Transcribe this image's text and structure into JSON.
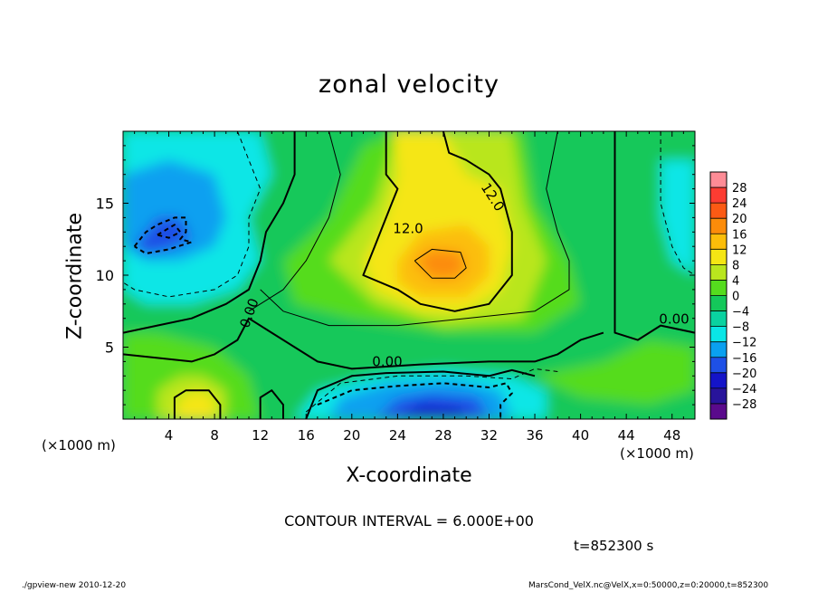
{
  "chart_data": {
    "type": "heatmap",
    "title": "zonal velocity",
    "xlabel": "X-coordinate",
    "ylabel": "Z-coordinate",
    "x_unit_label": "(×1000 m)",
    "xlim": [
      0,
      50
    ],
    "ylim": [
      0,
      20
    ],
    "x_ticks": [
      4,
      8,
      12,
      16,
      20,
      24,
      28,
      32,
      36,
      40,
      44,
      48
    ],
    "y_ticks": [
      5,
      10,
      15
    ],
    "colorbar_ticks": [
      28,
      24,
      20,
      16,
      12,
      8,
      4,
      0,
      -4,
      -8,
      -12,
      -16,
      -20,
      -24,
      -28
    ],
    "colorbar_colors": [
      "#fe8c96",
      "#fc3c32",
      "#fc5a14",
      "#fc8c0a",
      "#fcbe0a",
      "#f5e614",
      "#b9e61e",
      "#55dc1e",
      "#14c85a",
      "#0ad2a0",
      "#0ae6e6",
      "#0aa0f0",
      "#1e50e6",
      "#1414c8",
      "#28149b",
      "#5a0a8c"
    ],
    "contour_labels": [
      "12.0",
      "12.0",
      "0.00",
      "0.00",
      "0.00"
    ],
    "contour_interval_text": "CONTOUR INTERVAL = 6.000E+00",
    "time_text": "t=852300 s",
    "footer_left": "./gpview-new  2010-12-20",
    "footer_right": "MarsCond_VelX.nc@VelX,x=0:50000,z=0:20000,t=852300",
    "field_regions": [
      {
        "level": 0,
        "points": [
          [
            0,
            0
          ],
          [
            50,
            0
          ],
          [
            50,
            20
          ],
          [
            0,
            20
          ]
        ]
      },
      {
        "level": -8,
        "points": [
          [
            0,
            20
          ],
          [
            12,
            20
          ],
          [
            13,
            17
          ],
          [
            11,
            14
          ],
          [
            12,
            11
          ],
          [
            10,
            9
          ],
          [
            6,
            8
          ],
          [
            2,
            8
          ],
          [
            0,
            9
          ]
        ]
      },
      {
        "level": -12,
        "points": [
          [
            0,
            17
          ],
          [
            4,
            18
          ],
          [
            8,
            17
          ],
          [
            9,
            14
          ],
          [
            8,
            12
          ],
          [
            5,
            11
          ],
          [
            2,
            11
          ],
          [
            0,
            12
          ]
        ]
      },
      {
        "level": -16,
        "points": [
          [
            1,
            12
          ],
          [
            3,
            14
          ],
          [
            5,
            14
          ],
          [
            6,
            12.5
          ],
          [
            4,
            11.8
          ],
          [
            2,
            11.5
          ]
        ]
      },
      {
        "level": -8,
        "points": [
          [
            47,
            18
          ],
          [
            50,
            18
          ],
          [
            50,
            10
          ],
          [
            48,
            11
          ],
          [
            47,
            14
          ]
        ]
      },
      {
        "level": 4,
        "points": [
          [
            14,
            11
          ],
          [
            18,
            14
          ],
          [
            21,
            19
          ],
          [
            24,
            20
          ],
          [
            35,
            20
          ],
          [
            36,
            15
          ],
          [
            39,
            11
          ],
          [
            40,
            8
          ],
          [
            36,
            6
          ],
          [
            28,
            6
          ],
          [
            20,
            7
          ],
          [
            15,
            8
          ]
        ]
      },
      {
        "level": 8,
        "points": [
          [
            18,
            11
          ],
          [
            22,
            15
          ],
          [
            24,
            20
          ],
          [
            34,
            20
          ],
          [
            35,
            15
          ],
          [
            37,
            11
          ],
          [
            35,
            7
          ],
          [
            28,
            6.5
          ],
          [
            22,
            8
          ]
        ]
      },
      {
        "level": 12,
        "points": [
          [
            21,
            11
          ],
          [
            23,
            14
          ],
          [
            24,
            17
          ],
          [
            23.5,
            20
          ],
          [
            28,
            20
          ],
          [
            30,
            17
          ],
          [
            33,
            16
          ],
          [
            34,
            12
          ],
          [
            33,
            9
          ],
          [
            30,
            7.5
          ],
          [
            26,
            7.5
          ],
          [
            22,
            9
          ]
        ]
      },
      {
        "level": 16,
        "points": [
          [
            24,
            11
          ],
          [
            26,
            13
          ],
          [
            30,
            13.5
          ],
          [
            32,
            12
          ],
          [
            32,
            10
          ],
          [
            30,
            8.5
          ],
          [
            26,
            8.5
          ],
          [
            24,
            9.5
          ]
        ]
      },
      {
        "level": 20,
        "points": [
          [
            25.5,
            11
          ],
          [
            27,
            11.8
          ],
          [
            29.5,
            11.6
          ],
          [
            30,
            10.5
          ],
          [
            29,
            9.8
          ],
          [
            27,
            9.8
          ]
        ]
      },
      {
        "level": 4,
        "points": [
          [
            0,
            0
          ],
          [
            12,
            0
          ],
          [
            11,
            3
          ],
          [
            8,
            5
          ],
          [
            3,
            6
          ],
          [
            0,
            6
          ]
        ]
      },
      {
        "level": 8,
        "points": [
          [
            3,
            0
          ],
          [
            9,
            0
          ],
          [
            9,
            2
          ],
          [
            7,
            3
          ],
          [
            5,
            3
          ],
          [
            3,
            2
          ]
        ]
      },
      {
        "level": 12,
        "points": [
          [
            4.5,
            0
          ],
          [
            8,
            0
          ],
          [
            8,
            1.5
          ],
          [
            6.5,
            2
          ],
          [
            5,
            1.5
          ]
        ]
      },
      {
        "level": 4,
        "points": [
          [
            36,
            3
          ],
          [
            42,
            4
          ],
          [
            46,
            5.5
          ],
          [
            50,
            5
          ],
          [
            50,
            2
          ],
          [
            46,
            1
          ],
          [
            40,
            1.5
          ]
        ]
      },
      {
        "level": -8,
        "points": [
          [
            15,
            0
          ],
          [
            37,
            0
          ],
          [
            37,
            2
          ],
          [
            34,
            3
          ],
          [
            28,
            3.5
          ],
          [
            22,
            3
          ],
          [
            17,
            2
          ]
        ]
      },
      {
        "level": -12,
        "points": [
          [
            18,
            0
          ],
          [
            34,
            0
          ],
          [
            33,
            2
          ],
          [
            29,
            2.8
          ],
          [
            23,
            2.5
          ],
          [
            19,
            1.5
          ]
        ]
      },
      {
        "level": -16,
        "points": [
          [
            22,
            0
          ],
          [
            32,
            0
          ],
          [
            31,
            1.5
          ],
          [
            27,
            1.8
          ],
          [
            24,
            1.4
          ]
        ]
      },
      {
        "level": -20,
        "points": [
          [
            24,
            0
          ],
          [
            30,
            0
          ],
          [
            29.5,
            0.8
          ],
          [
            26,
            1
          ]
        ]
      }
    ],
    "contours": [
      {
        "style": "solid",
        "width": 2,
        "points": [
          [
            23,
            20
          ],
          [
            23,
            17
          ],
          [
            24,
            16
          ],
          [
            23.5,
            15
          ],
          [
            23,
            14
          ],
          [
            22,
            12
          ],
          [
            21,
            10
          ],
          [
            24,
            9
          ],
          [
            26,
            8
          ],
          [
            29,
            7.5
          ],
          [
            32,
            8
          ],
          [
            34,
            10
          ],
          [
            34,
            13
          ],
          [
            33,
            16
          ],
          [
            32,
            17
          ],
          [
            30,
            18
          ],
          [
            28.5,
            18.5
          ],
          [
            28,
            20
          ]
        ]
      },
      {
        "style": "solid",
        "width": 1,
        "points": [
          [
            25.5,
            11
          ],
          [
            27,
            11.8
          ],
          [
            29.5,
            11.6
          ],
          [
            30,
            10.5
          ],
          [
            29,
            9.8
          ],
          [
            27,
            9.8
          ],
          [
            25.5,
            11
          ]
        ]
      },
      {
        "style": "solid",
        "width": 2,
        "points": [
          [
            15,
            20
          ],
          [
            15,
            17
          ],
          [
            14,
            15
          ],
          [
            12.5,
            13
          ],
          [
            12,
            11
          ],
          [
            11,
            9
          ],
          [
            9,
            8
          ],
          [
            6,
            7
          ],
          [
            3,
            6.5
          ],
          [
            0,
            6
          ]
        ]
      },
      {
        "style": "solid",
        "width": 2,
        "points": [
          [
            43,
            20
          ],
          [
            43,
            15
          ],
          [
            43,
            10
          ],
          [
            43,
            6
          ],
          [
            45,
            5.5
          ],
          [
            47,
            6.5
          ],
          [
            50,
            6
          ]
        ]
      },
      {
        "style": "solid",
        "width": 2,
        "points": [
          [
            0,
            4.5
          ],
          [
            6,
            4
          ],
          [
            8,
            4.5
          ],
          [
            10,
            5.5
          ],
          [
            11,
            7
          ],
          [
            13,
            6
          ],
          [
            15,
            5
          ],
          [
            17,
            4
          ],
          [
            20,
            3.5
          ],
          [
            26,
            3.8
          ],
          [
            32,
            4
          ],
          [
            36,
            4
          ],
          [
            38,
            4.5
          ],
          [
            40,
            5.5
          ],
          [
            42,
            6
          ]
        ]
      },
      {
        "style": "solid",
        "width": 2,
        "points": [
          [
            4.5,
            0
          ],
          [
            4.5,
            1.5
          ],
          [
            5.5,
            2
          ],
          [
            7.5,
            2
          ],
          [
            8.5,
            1
          ],
          [
            8.5,
            0
          ]
        ]
      },
      {
        "style": "solid",
        "width": 2,
        "points": [
          [
            12,
            0
          ],
          [
            12,
            1.5
          ],
          [
            13,
            2
          ],
          [
            14,
            1
          ],
          [
            14,
            0
          ]
        ]
      },
      {
        "style": "solid",
        "width": 2,
        "points": [
          [
            16,
            0
          ],
          [
            17,
            2
          ],
          [
            20,
            3
          ],
          [
            23,
            3.2
          ],
          [
            28,
            3.3
          ],
          [
            32,
            3
          ],
          [
            34,
            3.4
          ],
          [
            36,
            3
          ]
        ]
      },
      {
        "style": "solid",
        "width": 1,
        "points": [
          [
            18,
            20
          ],
          [
            19,
            17
          ],
          [
            18,
            14
          ],
          [
            16,
            11
          ],
          [
            14,
            9
          ],
          [
            12,
            8
          ],
          [
            11,
            7.5
          ]
        ]
      },
      {
        "style": "solid",
        "width": 1,
        "points": [
          [
            38,
            20
          ],
          [
            37,
            16
          ],
          [
            38,
            13
          ],
          [
            39,
            11
          ],
          [
            39,
            9
          ],
          [
            36,
            7.5
          ],
          [
            30,
            7
          ],
          [
            24,
            6.5
          ],
          [
            18,
            6.5
          ],
          [
            14,
            7.5
          ],
          [
            12,
            9
          ]
        ]
      },
      {
        "style": "dashed",
        "width": 1,
        "points": [
          [
            10,
            20
          ],
          [
            11,
            18
          ],
          [
            12,
            16
          ],
          [
            11,
            14
          ],
          [
            11,
            12
          ],
          [
            10,
            10
          ],
          [
            8,
            9
          ],
          [
            4,
            8.5
          ],
          [
            1,
            9
          ],
          [
            0,
            9.5
          ]
        ]
      },
      {
        "style": "dashed",
        "width": 2,
        "points": [
          [
            1,
            12
          ],
          [
            2,
            13
          ],
          [
            3,
            13.5
          ],
          [
            4.5,
            14
          ],
          [
            5.5,
            14
          ],
          [
            5.5,
            13
          ],
          [
            5,
            12.5
          ],
          [
            6,
            12.3
          ],
          [
            4,
            11.8
          ],
          [
            2,
            11.5
          ],
          [
            1,
            12
          ]
        ]
      },
      {
        "style": "dashed",
        "width": 2,
        "points": [
          [
            3,
            12.8
          ],
          [
            4.5,
            13.5
          ],
          [
            5,
            13
          ],
          [
            4,
            12.6
          ],
          [
            3,
            12.8
          ]
        ]
      },
      {
        "style": "dashed",
        "width": 1,
        "points": [
          [
            47,
            20
          ],
          [
            47,
            15
          ],
          [
            48,
            12
          ],
          [
            49,
            10.5
          ],
          [
            50,
            10
          ]
        ]
      },
      {
        "style": "dashed",
        "width": 2,
        "points": [
          [
            17,
            1
          ],
          [
            20,
            2
          ],
          [
            24,
            2.3
          ],
          [
            28,
            2.5
          ],
          [
            32,
            2.2
          ],
          [
            33.5,
            2.5
          ],
          [
            34,
            1.8
          ],
          [
            33,
            1
          ],
          [
            33,
            0
          ]
        ]
      },
      {
        "style": "dashed",
        "width": 1,
        "points": [
          [
            16,
            0.5
          ],
          [
            19,
            2.5
          ],
          [
            24,
            3
          ],
          [
            30,
            3
          ],
          [
            34,
            2.8
          ],
          [
            36,
            3.5
          ],
          [
            38,
            3.3
          ]
        ]
      }
    ]
  }
}
